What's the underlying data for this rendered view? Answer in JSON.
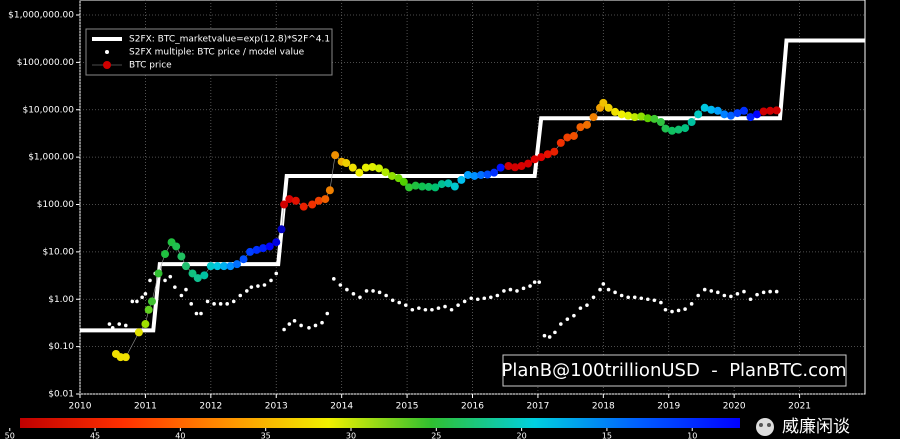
{
  "chart_data": {
    "type": "scatter",
    "log_y": true,
    "grid": true,
    "legend": "upper left",
    "xlim": [
      2010,
      2022
    ],
    "xticks": [
      2010,
      2011,
      2012,
      2013,
      2014,
      2015,
      2016,
      2017,
      2018,
      2019,
      2020,
      2021
    ],
    "ylim": [
      0.01,
      1000000
    ],
    "yticks": [
      {
        "value": 0.01,
        "label": "$0.01"
      },
      {
        "value": 0.1,
        "label": "$0.10"
      },
      {
        "value": 1,
        "label": "$1.00"
      },
      {
        "value": 10,
        "label": "$10.00"
      },
      {
        "value": 100,
        "label": "$100.00"
      },
      {
        "value": 1000,
        "label": "$1,000.00"
      },
      {
        "value": 10000,
        "label": "$10,000.00"
      },
      {
        "value": 100000,
        "label": "$100,000.00"
      },
      {
        "value": 1000000,
        "label": "$1,000,000.00"
      }
    ],
    "series": [
      {
        "name": "S2FX: BTC_marketvalue=exp(12.8)*S2F^4.1",
        "kind": "line",
        "color": "#ffffff",
        "x": [
          2010,
          2011.12,
          2011.22,
          2013.03,
          2013.16,
          2016.95,
          2017.05,
          2020.7,
          2020.8,
          2022
        ],
        "values": [
          0.22,
          0.22,
          5.5,
          5.5,
          400,
          400,
          6600,
          6600,
          290000,
          290000
        ]
      },
      {
        "name": "S2FX multiple: BTC price / model value",
        "kind": "dots",
        "color": "#ffffff",
        "x": [
          2010.45,
          2010.5,
          2010.6,
          2010.7,
          2010.8,
          2010.87,
          2010.95,
          2011.0,
          2011.07,
          2011.15,
          2011.22,
          2011.3,
          2011.38,
          2011.45,
          2011.55,
          2011.62,
          2011.7,
          2011.78,
          2011.85,
          2011.95,
          2012.05,
          2012.15,
          2012.25,
          2012.35,
          2012.45,
          2012.55,
          2012.62,
          2012.72,
          2012.82,
          2012.92,
          2013.0,
          2013.12,
          2013.2,
          2013.28,
          2013.38,
          2013.5,
          2013.6,
          2013.7,
          2013.78,
          2013.88,
          2013.98,
          2014.08,
          2014.18,
          2014.28,
          2014.38,
          2014.48,
          2014.58,
          2014.68,
          2014.78,
          2014.88,
          2014.98,
          2015.08,
          2015.18,
          2015.28,
          2015.38,
          2015.48,
          2015.58,
          2015.68,
          2015.78,
          2015.88,
          2015.98,
          2016.08,
          2016.18,
          2016.28,
          2016.38,
          2016.48,
          2016.58,
          2016.68,
          2016.78,
          2016.88,
          2016.95,
          2017.02,
          2017.1,
          2017.18,
          2017.26,
          2017.35,
          2017.45,
          2017.55,
          2017.65,
          2017.75,
          2017.85,
          2017.95,
          2018.0,
          2018.08,
          2018.18,
          2018.28,
          2018.38,
          2018.48,
          2018.58,
          2018.68,
          2018.78,
          2018.88,
          2018.95,
          2019.05,
          2019.15,
          2019.25,
          2019.35,
          2019.45,
          2019.55,
          2019.65,
          2019.75,
          2019.85,
          2019.95,
          2020.05,
          2020.15,
          2020.25,
          2020.35,
          2020.45,
          2020.55,
          2020.65
        ],
        "values": [
          0.3,
          0.25,
          0.3,
          0.28,
          0.9,
          0.9,
          1.1,
          1.3,
          2.5,
          3.5,
          4,
          2.5,
          3,
          1.8,
          1.2,
          1.6,
          0.8,
          0.5,
          0.5,
          0.9,
          0.8,
          0.8,
          0.8,
          0.9,
          1.2,
          1.5,
          1.8,
          1.9,
          2.0,
          2.5,
          3.5,
          0.23,
          0.3,
          0.35,
          0.28,
          0.25,
          0.28,
          0.32,
          0.5,
          2.7,
          2,
          1.6,
          1.3,
          1.1,
          1.5,
          1.5,
          1.4,
          1.2,
          0.95,
          0.85,
          0.75,
          0.6,
          0.65,
          0.6,
          0.6,
          0.65,
          0.7,
          0.6,
          0.75,
          0.9,
          1.05,
          1.0,
          1.05,
          1.1,
          1.2,
          1.5,
          1.6,
          1.5,
          1.7,
          1.9,
          2.3,
          2.3,
          0.17,
          0.16,
          0.2,
          0.3,
          0.38,
          0.45,
          0.65,
          0.75,
          1.1,
          1.6,
          2.1,
          1.6,
          1.4,
          1.2,
          1.1,
          1.1,
          1.05,
          1.0,
          0.95,
          0.85,
          0.6,
          0.55,
          0.58,
          0.62,
          0.8,
          1.2,
          1.6,
          1.5,
          1.4,
          1.2,
          1.15,
          1.3,
          1.45,
          1.0,
          1.25,
          1.4,
          1.45,
          1.45
        ]
      },
      {
        "name": "BTC price",
        "kind": "colored-dots",
        "color": "#d00000",
        "x": [
          2010.55,
          2010.62,
          2010.7,
          2010.9,
          2011.0,
          2011.05,
          2011.1,
          2011.2,
          2011.3,
          2011.4,
          2011.47,
          2011.55,
          2011.62,
          2011.72,
          2011.8,
          2011.9,
          2012.0,
          2012.1,
          2012.2,
          2012.3,
          2012.4,
          2012.5,
          2012.6,
          2012.7,
          2012.8,
          2012.9,
          2013.0,
          2013.08,
          2013.12,
          2013.2,
          2013.3,
          2013.42,
          2013.55,
          2013.65,
          2013.75,
          2013.82,
          2013.9,
          2014.0,
          2014.07,
          2014.17,
          2014.27,
          2014.37,
          2014.47,
          2014.57,
          2014.67,
          2014.77,
          2014.87,
          2014.95,
          2015.03,
          2015.13,
          2015.23,
          2015.33,
          2015.43,
          2015.53,
          2015.63,
          2015.73,
          2015.83,
          2015.93,
          2016.03,
          2016.13,
          2016.23,
          2016.33,
          2016.43,
          2016.55,
          2016.65,
          2016.75,
          2016.85,
          2016.95,
          2017.05,
          2017.15,
          2017.25,
          2017.35,
          2017.45,
          2017.55,
          2017.65,
          2017.75,
          2017.85,
          2017.95,
          2018.0,
          2018.08,
          2018.18,
          2018.28,
          2018.38,
          2018.48,
          2018.58,
          2018.68,
          2018.78,
          2018.88,
          2018.95,
          2019.05,
          2019.15,
          2019.25,
          2019.35,
          2019.45,
          2019.55,
          2019.65,
          2019.75,
          2019.85,
          2019.95,
          2020.05,
          2020.15,
          2020.25,
          2020.35,
          2020.45,
          2020.55,
          2020.65
        ],
        "values": [
          0.07,
          0.06,
          0.06,
          0.2,
          0.3,
          0.6,
          0.9,
          3.5,
          9,
          16,
          13,
          8,
          5,
          3.5,
          2.8,
          3.2,
          5,
          5,
          5,
          5,
          5.5,
          7,
          10,
          11,
          12,
          13,
          16,
          30,
          100,
          130,
          120,
          90,
          100,
          120,
          130,
          200,
          1100,
          800,
          750,
          600,
          470,
          600,
          620,
          580,
          480,
          400,
          360,
          300,
          230,
          250,
          240,
          235,
          230,
          270,
          280,
          240,
          330,
          420,
          400,
          420,
          430,
          470,
          600,
          650,
          610,
          650,
          730,
          900,
          1000,
          1150,
          1300,
          2000,
          2600,
          2800,
          4300,
          4800,
          7000,
          11000,
          14000,
          11000,
          9000,
          8000,
          7500,
          7000,
          7200,
          6600,
          6400,
          5500,
          4000,
          3600,
          3800,
          4100,
          5500,
          8000,
          11000,
          10000,
          9500,
          8000,
          7500,
          8500,
          9500,
          7000,
          8000,
          9200,
          9500,
          9700
        ],
        "colors": [
          "#f0e000",
          "#f0e000",
          "#f0e000",
          "#e0e000",
          "#a0e000",
          "#60d020",
          "#40c030",
          "#30c030",
          "#20c040",
          "#20c040",
          "#20c050",
          "#20c060",
          "#20c070",
          "#10c080",
          "#10c090",
          "#00c0a0",
          "#00c8c8",
          "#00c8e0",
          "#00b0f0",
          "#0090ff",
          "#0070ff",
          "#0050ff",
          "#0040ff",
          "#0030ff",
          "#0020ff",
          "#0000ff",
          "#0000e0",
          "#0000c0",
          "#d00000",
          "#d80000",
          "#e01000",
          "#e82000",
          "#f03000",
          "#f04000",
          "#f06000",
          "#f08000",
          "#f09000",
          "#f0b000",
          "#f0d000",
          "#f0e000",
          "#f0f000",
          "#e8f000",
          "#e0f000",
          "#d0f000",
          "#b0e800",
          "#90e000",
          "#70d800",
          "#50d000",
          "#30c830",
          "#20c040",
          "#10c050",
          "#10c060",
          "#00c070",
          "#00c090",
          "#00c0b0",
          "#00c8d0",
          "#00c0f0",
          "#00a0ff",
          "#0090ff",
          "#0070ff",
          "#0050ff",
          "#0030ff",
          "#0010ff",
          "#d00000",
          "#d00000",
          "#d80000",
          "#d80000",
          "#e00000",
          "#e00000",
          "#e81000",
          "#e82000",
          "#f03000",
          "#f04000",
          "#f05000",
          "#f06000",
          "#f07000",
          "#f08000",
          "#f0a000",
          "#f0c000",
          "#f0d000",
          "#f0e000",
          "#f0f000",
          "#e0f000",
          "#c0e800",
          "#90e000",
          "#60d000",
          "#40c830",
          "#30c040",
          "#20c050",
          "#10c060",
          "#10c070",
          "#00c080",
          "#00c0a0",
          "#00c8c0",
          "#00c8e0",
          "#00b8f0",
          "#00a0ff",
          "#0080ff",
          "#0060ff",
          "#0040ff",
          "#0030ff",
          "#0020ff",
          "#0000ff",
          "#d00000",
          "#d00000",
          "#d00000"
        ]
      }
    ],
    "annotation": "PlanB@100trillionUSD  -  PlanBTC.com",
    "colorbar": {
      "lim": [
        49.4,
        7.2
      ],
      "ticks": [
        50,
        45,
        40,
        35,
        30,
        25,
        20,
        15,
        10
      ],
      "colors": [
        "#c00000",
        "#ff3000",
        "#ff9000",
        "#f0f000",
        "#30c030",
        "#00d0e0",
        "#0060ff",
        "#0000ff"
      ]
    }
  },
  "watermark": "威廉闲谈"
}
